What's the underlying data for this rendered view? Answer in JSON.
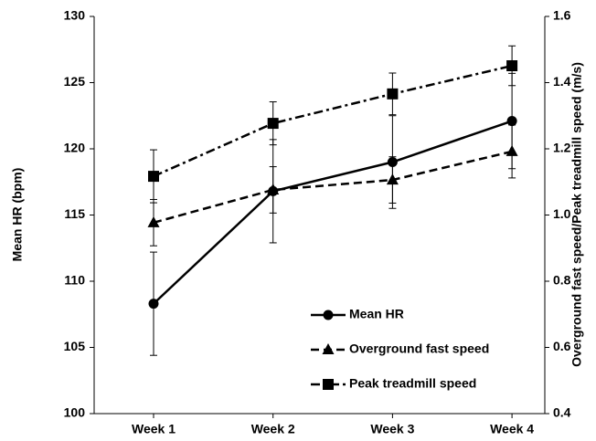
{
  "chart_data": {
    "type": "line",
    "ylabel": "Mean HR (bpm)",
    "y2label": "Overground fast speed/Peak  treadmill speed (m/s)",
    "categories": [
      "Week 1",
      "Week 2",
      "Week 3",
      "Week 4"
    ],
    "ylim": [
      100,
      130
    ],
    "yticks": [
      100,
      105,
      110,
      115,
      120,
      125,
      130
    ],
    "y2lim": [
      0.4,
      1.6
    ],
    "y2ticks": [
      0.4,
      0.6,
      0.8,
      {
        "value": 1,
        "label": "1.0"
      },
      1.2,
      1.4,
      1.6
    ],
    "grid": false,
    "legend": "lower right",
    "series": [
      {
        "name": "Mean HR",
        "color": "#000000",
        "linestyle": "solid",
        "marker": "circle",
        "axis": "y",
        "values": [
          108.3,
          116.8,
          119.0,
          122.1
        ],
        "errors": [
          3.9,
          3.9,
          3.5,
          3.6
        ]
      },
      {
        "name": "Overground fast speed",
        "color": "#000000",
        "linestyle": "dashed",
        "marker": "triangle",
        "axis": "y2",
        "values": [
          0.977,
          1.076,
          1.106,
          1.192
        ],
        "errors": [
          0.07,
          0.07,
          0.07,
          0.08
        ]
      },
      {
        "name": "Peak treadmill speed",
        "color": "#000000",
        "linestyle": "dashdot",
        "marker": "square",
        "axis": "y2",
        "values": [
          1.117,
          1.277,
          1.366,
          1.451
        ],
        "errors": [
          0.08,
          0.065,
          0.063,
          0.06
        ]
      }
    ]
  }
}
